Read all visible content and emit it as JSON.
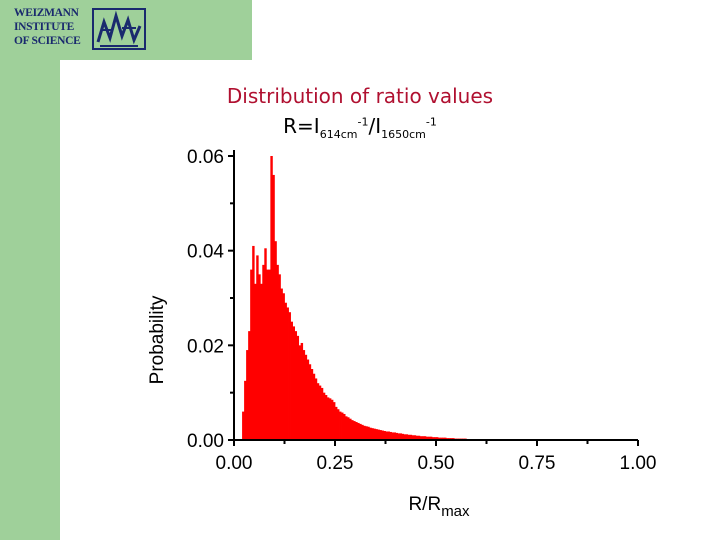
{
  "logo": {
    "lines": [
      "WEIZMANN",
      "INSTITUTE",
      "OF SCIENCE"
    ],
    "emblem": "weizmann-emblem-icon"
  },
  "colors": {
    "bars": "#ff0000",
    "title": "#b01030",
    "band": "#9fd09a"
  },
  "chart_data": {
    "type": "bar",
    "title": "Distribution of ratio values",
    "subtitle": {
      "prefix": "R=I",
      "num_sub": "614cm",
      "num_sup": "-1",
      "slash": "/I",
      "den_sub": "1650cm",
      "den_sup": "-1"
    },
    "xlabel": {
      "main": "R/R",
      "sub": "max"
    },
    "ylabel": "Probability",
    "xlim": [
      0,
      1
    ],
    "ylim": [
      0,
      0.06
    ],
    "xticks": [
      "0.00",
      "0.25",
      "0.50",
      "0.75",
      "1.00"
    ],
    "yticks": [
      "0.00",
      "0.02",
      "0.04",
      "0.06"
    ],
    "bin_width": 0.005,
    "x": [
      0.02,
      0.025,
      0.03,
      0.035,
      0.04,
      0.045,
      0.05,
      0.055,
      0.06,
      0.065,
      0.07,
      0.075,
      0.08,
      0.085,
      0.09,
      0.095,
      0.1,
      0.105,
      0.11,
      0.115,
      0.12,
      0.125,
      0.13,
      0.135,
      0.14,
      0.145,
      0.15,
      0.155,
      0.16,
      0.165,
      0.17,
      0.175,
      0.18,
      0.185,
      0.19,
      0.195,
      0.2,
      0.205,
      0.21,
      0.215,
      0.22,
      0.225,
      0.23,
      0.235,
      0.24,
      0.245,
      0.25,
      0.255,
      0.26,
      0.265,
      0.27,
      0.275,
      0.28,
      0.285,
      0.29,
      0.295,
      0.3,
      0.305,
      0.31,
      0.315,
      0.32,
      0.325,
      0.33,
      0.335,
      0.34,
      0.345,
      0.35,
      0.355,
      0.36,
      0.365,
      0.37,
      0.375,
      0.38,
      0.385,
      0.39,
      0.395,
      0.4,
      0.405,
      0.41,
      0.415,
      0.42,
      0.425,
      0.43,
      0.435,
      0.44,
      0.445,
      0.45,
      0.455,
      0.46,
      0.465,
      0.47,
      0.475,
      0.48,
      0.485,
      0.49,
      0.495,
      0.5,
      0.505,
      0.51,
      0.515,
      0.52,
      0.525,
      0.53,
      0.535,
      0.54,
      0.545,
      0.55,
      0.555,
      0.56,
      0.565,
      0.57,
      0.575,
      0.58,
      0.585,
      0.59,
      0.595,
      0.6,
      0.605,
      0.61,
      0.615,
      0.62,
      0.625,
      0.63,
      0.635,
      0.64,
      0.645,
      0.65,
      0.655,
      0.66,
      0.665,
      0.67,
      0.675,
      0.68,
      0.685,
      0.69,
      0.695,
      0.7,
      0.705,
      0.71,
      0.715,
      0.72,
      0.725,
      0.73,
      0.735,
      0.74,
      0.745,
      0.75,
      0.755,
      0.76,
      0.765,
      0.77,
      0.775,
      0.78,
      0.785,
      0.79,
      0.795,
      0.8
    ],
    "values": [
      0.006,
      0.0125,
      0.019,
      0.023,
      0.036,
      0.041,
      0.033,
      0.039,
      0.035,
      0.033,
      0.037,
      0.0405,
      0.036,
      0.036,
      0.06,
      0.056,
      0.042,
      0.037,
      0.035,
      0.032,
      0.031,
      0.029,
      0.028,
      0.027,
      0.025,
      0.024,
      0.023,
      0.022,
      0.02,
      0.0205,
      0.019,
      0.018,
      0.017,
      0.016,
      0.015,
      0.014,
      0.013,
      0.012,
      0.0115,
      0.011,
      0.01,
      0.0095,
      0.009,
      0.0088,
      0.0085,
      0.008,
      0.007,
      0.0065,
      0.006,
      0.0058,
      0.0055,
      0.005,
      0.0048,
      0.0045,
      0.0042,
      0.004,
      0.0038,
      0.0036,
      0.0034,
      0.0032,
      0.003,
      0.0029,
      0.0028,
      0.0026,
      0.0025,
      0.0024,
      0.0023,
      0.0022,
      0.0021,
      0.002,
      0.0019,
      0.0018,
      0.0018,
      0.0017,
      0.0016,
      0.0016,
      0.0015,
      0.0014,
      0.0014,
      0.0013,
      0.0012,
      0.0012,
      0.0011,
      0.0011,
      0.001,
      0.001,
      0.0009,
      0.0009,
      0.0008,
      0.0008,
      0.0008,
      0.0007,
      0.0007,
      0.0007,
      0.0006,
      0.0006,
      0.0006,
      0.0005,
      0.0005,
      0.0005,
      0.0005,
      0.0004,
      0.0004,
      0.0004,
      0.0004,
      0.0003,
      0.0003,
      0.0003,
      0.0003,
      0.0003,
      0.0003,
      0.0002,
      0.0002,
      0.0002,
      0.0002,
      0.0002,
      0.0002,
      0.0002,
      0.0002,
      0.0002,
      0.0001,
      0.0001,
      0.0001,
      0.0001,
      0.0001,
      0.0001,
      0.0001,
      0.0001,
      0.0001,
      0.0001,
      0.0001,
      0.0001,
      0.0001,
      0.0001,
      0.0001,
      0.0001,
      0.0001,
      0.0001,
      0.0001,
      0.0001,
      0.0001,
      0.0001,
      0.0001,
      0.0001,
      0.0001,
      0.0001,
      0.0001,
      0.0001,
      0.0001,
      0.0001,
      0.0001,
      0.0001,
      0.0001,
      0.0001,
      0.0001,
      0.0001,
      0.0001
    ]
  }
}
